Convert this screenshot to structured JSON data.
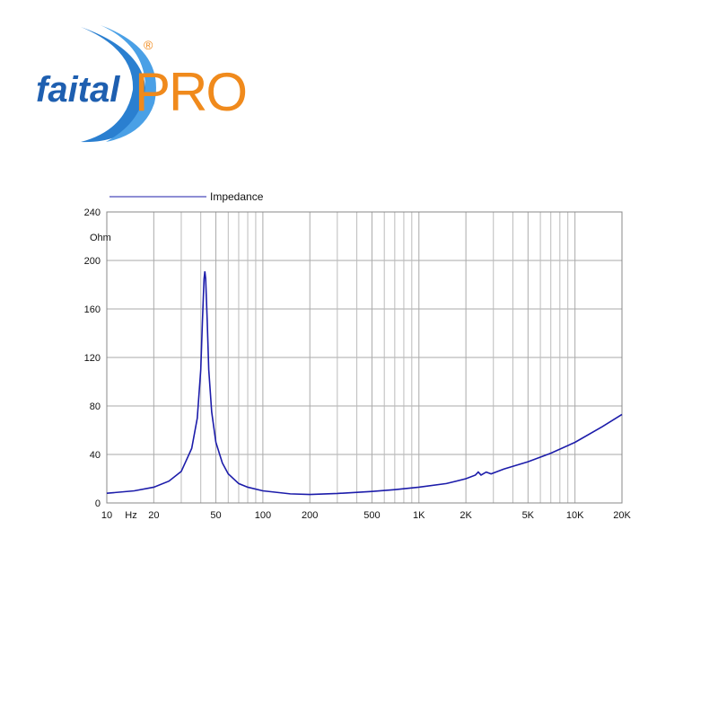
{
  "logo": {
    "brand": "faital",
    "product": "PRO",
    "registered": "®"
  },
  "chart_data": {
    "type": "line",
    "x_unit": "Hz",
    "y_unit": "Ohm",
    "x": [
      10,
      15,
      20,
      25,
      30,
      35,
      38,
      40,
      41,
      42,
      42.5,
      43,
      44,
      45,
      47,
      50,
      55,
      60,
      70,
      80,
      100,
      150,
      200,
      300,
      500,
      700,
      1000,
      1500,
      2000,
      2300,
      2400,
      2500,
      2700,
      2900,
      3500,
      5000,
      7000,
      10000,
      15000,
      20000
    ],
    "series": [
      {
        "name": "Impedance",
        "color": "#1c1caa",
        "values": [
          8,
          10,
          13,
          18,
          26,
          45,
          70,
          110,
          150,
          185,
          191,
          185,
          150,
          110,
          75,
          50,
          33,
          24,
          16,
          13,
          10,
          7.5,
          7,
          7.8,
          9.5,
          11,
          13,
          16,
          20,
          23,
          25.5,
          23,
          25.5,
          24,
          28,
          34,
          41,
          50,
          63,
          73
        ]
      }
    ],
    "xscale": "log",
    "xlim": [
      10,
      20000
    ],
    "xticks": [
      10,
      20,
      50,
      100,
      200,
      500,
      {
        "value": 1000,
        "label": "1K"
      },
      {
        "value": 2000,
        "label": "2K"
      },
      {
        "value": 5000,
        "label": "5K"
      },
      {
        "value": 10000,
        "label": "10K"
      },
      {
        "value": 20000,
        "label": "20K"
      }
    ],
    "x_grid": [
      30,
      40,
      60,
      70,
      80,
      90,
      300,
      400,
      600,
      700,
      800,
      900,
      3000,
      4000,
      6000,
      7000,
      8000,
      9000
    ],
    "ylim": [
      0,
      240
    ],
    "yticks": [
      0,
      40,
      80,
      120,
      160,
      200,
      240
    ],
    "grid": true,
    "legend": "top-left"
  }
}
